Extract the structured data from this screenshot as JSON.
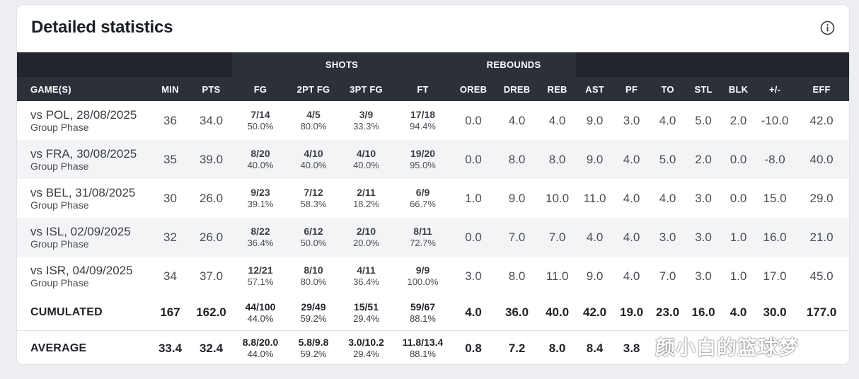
{
  "title": "Detailed statistics",
  "groups": {
    "shots": "SHOTS",
    "rebounds": "REBOUNDS"
  },
  "columns": [
    "GAME(S)",
    "MIN",
    "PTS",
    "FG",
    "2PT FG",
    "3PT FG",
    "FT",
    "OREB",
    "DREB",
    "REB",
    "AST",
    "PF",
    "TO",
    "STL",
    "BLK",
    "+/-",
    "EFF"
  ],
  "games": [
    {
      "opponent": "vs POL, 28/08/2025",
      "phase": "Group Phase",
      "min": "36",
      "pts": "34.0",
      "fg": {
        "r": "7/14",
        "p": "50.0%"
      },
      "fg2": {
        "r": "4/5",
        "p": "80.0%"
      },
      "fg3": {
        "r": "3/9",
        "p": "33.3%"
      },
      "ft": {
        "r": "17/18",
        "p": "94.4%"
      },
      "oreb": "0.0",
      "dreb": "4.0",
      "reb": "4.0",
      "ast": "9.0",
      "pf": "3.0",
      "to": "4.0",
      "stl": "5.0",
      "blk": "2.0",
      "pm": "-10.0",
      "eff": "42.0"
    },
    {
      "opponent": "vs FRA, 30/08/2025",
      "phase": "Group Phase",
      "min": "35",
      "pts": "39.0",
      "fg": {
        "r": "8/20",
        "p": "40.0%"
      },
      "fg2": {
        "r": "4/10",
        "p": "40.0%"
      },
      "fg3": {
        "r": "4/10",
        "p": "40.0%"
      },
      "ft": {
        "r": "19/20",
        "p": "95.0%"
      },
      "oreb": "0.0",
      "dreb": "8.0",
      "reb": "8.0",
      "ast": "9.0",
      "pf": "4.0",
      "to": "5.0",
      "stl": "2.0",
      "blk": "0.0",
      "pm": "-8.0",
      "eff": "40.0"
    },
    {
      "opponent": "vs BEL, 31/08/2025",
      "phase": "Group Phase",
      "min": "30",
      "pts": "26.0",
      "fg": {
        "r": "9/23",
        "p": "39.1%"
      },
      "fg2": {
        "r": "7/12",
        "p": "58.3%"
      },
      "fg3": {
        "r": "2/11",
        "p": "18.2%"
      },
      "ft": {
        "r": "6/9",
        "p": "66.7%"
      },
      "oreb": "1.0",
      "dreb": "9.0",
      "reb": "10.0",
      "ast": "11.0",
      "pf": "4.0",
      "to": "4.0",
      "stl": "3.0",
      "blk": "0.0",
      "pm": "15.0",
      "eff": "29.0"
    },
    {
      "opponent": "vs ISL, 02/09/2025",
      "phase": "Group Phase",
      "min": "32",
      "pts": "26.0",
      "fg": {
        "r": "8/22",
        "p": "36.4%"
      },
      "fg2": {
        "r": "6/12",
        "p": "50.0%"
      },
      "fg3": {
        "r": "2/10",
        "p": "20.0%"
      },
      "ft": {
        "r": "8/11",
        "p": "72.7%"
      },
      "oreb": "0.0",
      "dreb": "7.0",
      "reb": "7.0",
      "ast": "4.0",
      "pf": "4.0",
      "to": "3.0",
      "stl": "3.0",
      "blk": "1.0",
      "pm": "16.0",
      "eff": "21.0"
    },
    {
      "opponent": "vs ISR, 04/09/2025",
      "phase": "Group Phase",
      "min": "34",
      "pts": "37.0",
      "fg": {
        "r": "12/21",
        "p": "57.1%"
      },
      "fg2": {
        "r": "8/10",
        "p": "80.0%"
      },
      "fg3": {
        "r": "4/11",
        "p": "36.4%"
      },
      "ft": {
        "r": "9/9",
        "p": "100.0%"
      },
      "oreb": "3.0",
      "dreb": "8.0",
      "reb": "11.0",
      "ast": "9.0",
      "pf": "4.0",
      "to": "7.0",
      "stl": "3.0",
      "blk": "1.0",
      "pm": "17.0",
      "eff": "45.0"
    }
  ],
  "cumulated": {
    "label": "CUMULATED",
    "min": "167",
    "pts": "162.0",
    "fg": {
      "r": "44/100",
      "p": "44.0%"
    },
    "fg2": {
      "r": "29/49",
      "p": "59.2%"
    },
    "fg3": {
      "r": "15/51",
      "p": "29.4%"
    },
    "ft": {
      "r": "59/67",
      "p": "88.1%"
    },
    "oreb": "4.0",
    "dreb": "36.0",
    "reb": "40.0",
    "ast": "42.0",
    "pf": "19.0",
    "to": "23.0",
    "stl": "16.0",
    "blk": "4.0",
    "pm": "30.0",
    "eff": "177.0"
  },
  "average": {
    "label": "AVERAGE",
    "min": "33.4",
    "pts": "32.4",
    "fg": {
      "r": "8.8/20.0",
      "p": "44.0%"
    },
    "fg2": {
      "r": "5.8/9.8",
      "p": "59.2%"
    },
    "fg3": {
      "r": "3.0/10.2",
      "p": "29.4%"
    },
    "ft": {
      "r": "11.8/13.4",
      "p": "88.1%"
    },
    "oreb": "0.8",
    "dreb": "7.2",
    "reb": "8.0",
    "ast": "8.4",
    "pf": "3.8",
    "to": "",
    "stl": "",
    "blk": "",
    "pm": "",
    "eff": ""
  },
  "watermark": "颜小白的篮球梦"
}
